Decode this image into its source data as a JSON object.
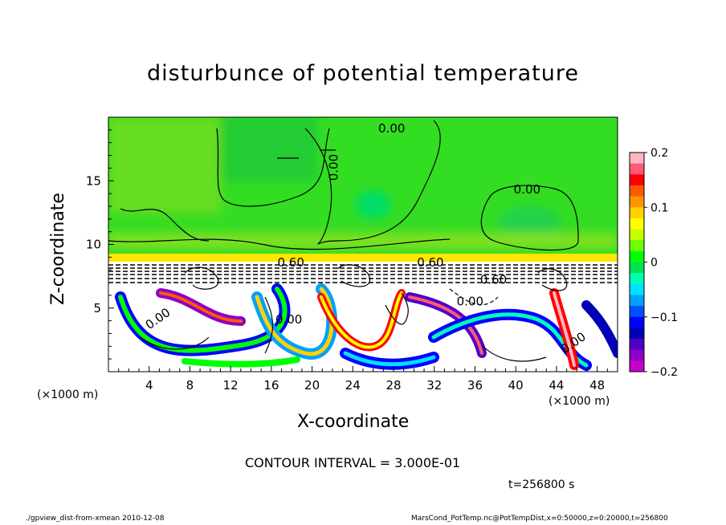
{
  "title": "disturbunce of potential temperature",
  "chart_data": {
    "type": "heatmap",
    "title": "disturbunce of potential temperature",
    "xlabel": "X-coordinate",
    "ylabel": "Z-coordinate",
    "x_unit": "(×1000 m)",
    "y_unit": "(×1000 m)",
    "xlim": [
      0,
      50
    ],
    "ylim": [
      0,
      20
    ],
    "x_ticks": [
      4,
      8,
      12,
      16,
      20,
      24,
      28,
      32,
      36,
      40,
      44,
      48
    ],
    "y_ticks": [
      5,
      10,
      15
    ],
    "colorbar": {
      "range": [
        -0.2,
        0.2
      ],
      "ticks": [
        0.2,
        0.1,
        0,
        -0.1,
        -0.2
      ],
      "tick_labels": [
        "0.2",
        "0.1",
        "0",
        "−0.1",
        "−0.2"
      ],
      "colors": [
        "#ffb6c1",
        "#ff5a78",
        "#ff0000",
        "#ff5a00",
        "#ff9600",
        "#ffd200",
        "#ffff00",
        "#c8ff00",
        "#6eff00",
        "#00ff00",
        "#00e050",
        "#00ffb4",
        "#00e1ff",
        "#00a0ff",
        "#0050ff",
        "#0000ff",
        "#0000b4",
        "#5000c8",
        "#8c00c8",
        "#c800c8"
      ]
    },
    "contour_labels": [
      "0.00",
      "0.00",
      "0.00",
      "0.60",
      "0.60",
      "0.60",
      "0.00",
      "0.00",
      "0.00",
      "0.00"
    ],
    "contour_interval": "CONTOUR INTERVAL = 3.000E-01",
    "time": "t=256800  s"
  },
  "labels": {
    "xunit_left": "(×1000 m)",
    "xunit_right": "(×1000 m)",
    "contour": "CONTOUR INTERVAL = 3.000E-01",
    "time": "t=256800  s",
    "footer_left": "./gpview_dist-from-xmean   2010-12-08",
    "footer_right": "MarsCond_PotTemp.nc@PotTempDist,x=0:50000,z=0:20000,t=256800"
  }
}
